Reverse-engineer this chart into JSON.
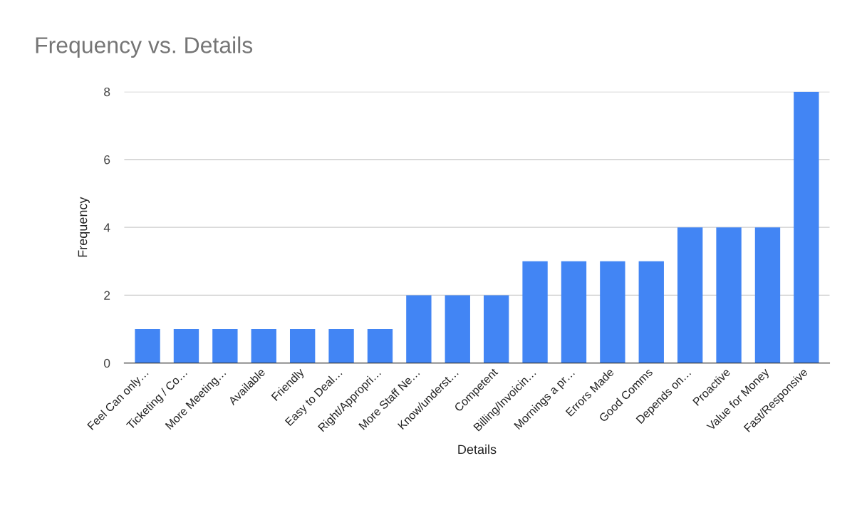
{
  "chart_data": {
    "type": "bar",
    "title": "Frequency vs. Details",
    "xlabel": "Details",
    "ylabel": "Frequency",
    "categories": [
      "Feel Can only…",
      "Ticketing / Co…",
      "More Meeting…",
      "Available",
      "Friendly",
      "Easy to Deal…",
      "Right/Appropri…",
      "More Staff Ne…",
      "Know/underst…",
      "Competent",
      "Billing/Invoicin…",
      "Mornings a pr…",
      "Errors Made",
      "Good Comms",
      "Depends on…",
      "Proactive",
      "Value for Money",
      "Fast/Responsive"
    ],
    "values": [
      1,
      1,
      1,
      1,
      1,
      1,
      1,
      2,
      2,
      2,
      3,
      3,
      3,
      3,
      4,
      4,
      4,
      8
    ],
    "color": "#4285f4",
    "ylim": [
      0,
      8
    ],
    "yticks": [
      0,
      2,
      4,
      6,
      8
    ],
    "grid": "y"
  }
}
